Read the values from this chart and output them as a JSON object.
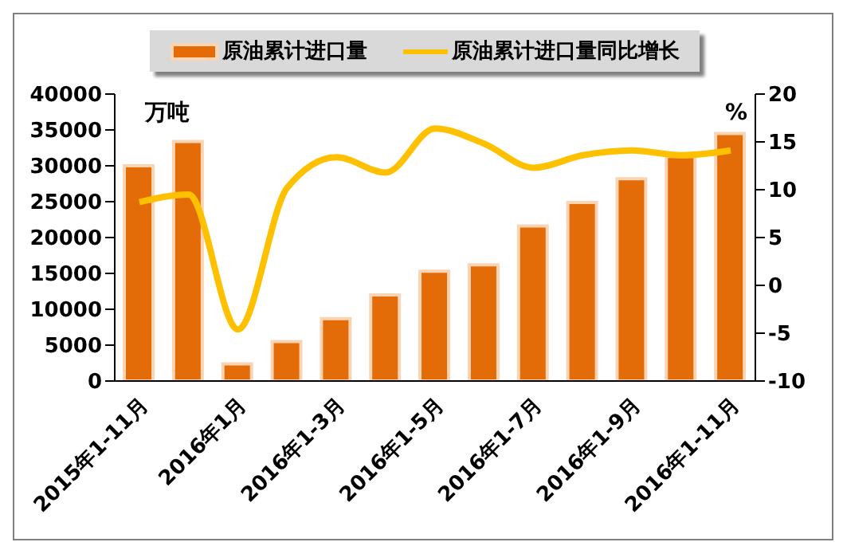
{
  "chart_data": {
    "type": "bar",
    "ylabel": "万吨",
    "y2label": "%",
    "categories": [
      "2015年1-11月",
      null,
      "2016年1月",
      null,
      "2016年1-3月",
      null,
      "2016年1-5月",
      null,
      "2016年1-7月",
      null,
      "2016年1-9月",
      null,
      "2016年1-11月"
    ],
    "series": [
      {
        "name": "原油累计进口量",
        "color": "#e36c09",
        "values": [
          30000,
          33400,
          2400,
          5500,
          8700,
          12000,
          15300,
          16200,
          21600,
          24900,
          28200,
          31300,
          34500
        ]
      },
      {
        "name": "原油累计进口量同比增长",
        "type": "line",
        "axis": "y2",
        "color": "#ffc000",
        "values": [
          8.7,
          9.5,
          -4.6,
          10.2,
          13.4,
          11.8,
          16.4,
          14.8,
          12.3,
          13.6,
          14.1,
          13.6,
          14.1
        ]
      }
    ],
    "ylim": [
      0,
      40000
    ],
    "yticks": [
      0,
      5000,
      10000,
      15000,
      20000,
      25000,
      30000,
      35000,
      40000
    ],
    "y2lim": [
      -10,
      20
    ],
    "y2ticks": [
      -10,
      -5,
      0,
      5,
      10,
      15,
      20
    ],
    "grid": false,
    "legend": "top",
    "marker": "none",
    "line_style": "solid"
  }
}
